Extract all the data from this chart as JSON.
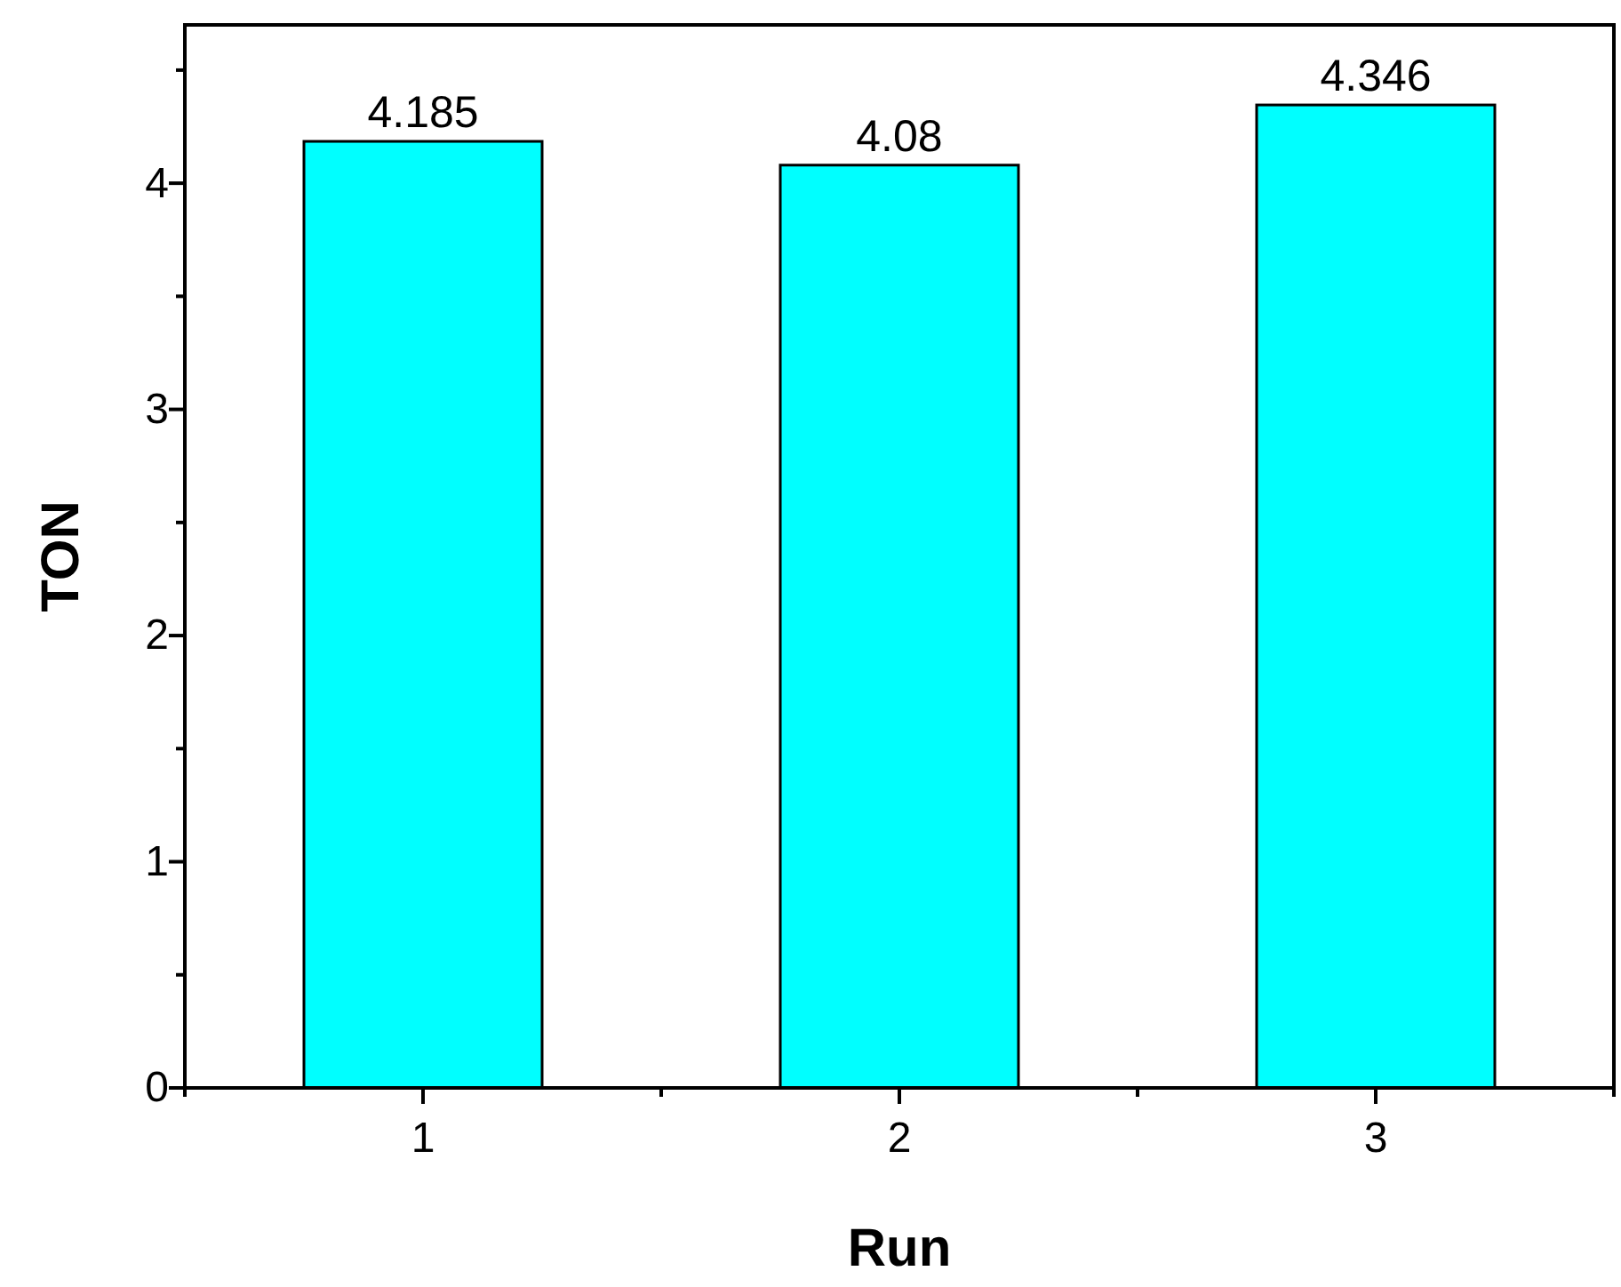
{
  "chart_data": {
    "type": "bar",
    "xlabel": "Run",
    "ylabel": "TON",
    "categories": [
      "1",
      "2",
      "3"
    ],
    "values": [
      4.185,
      4.08,
      4.346
    ],
    "color": "#00ffff",
    "data_labels": true,
    "ylim": [
      0,
      4.7
    ],
    "yticks": [
      0,
      {
        "value": 0.5,
        "label": null
      },
      1,
      {
        "value": 1.5,
        "label": null
      },
      2,
      {
        "value": 2.5,
        "label": null
      },
      3,
      {
        "value": 3.5,
        "label": null
      },
      4,
      {
        "value": 4.5,
        "label": null
      }
    ],
    "grid": false
  }
}
